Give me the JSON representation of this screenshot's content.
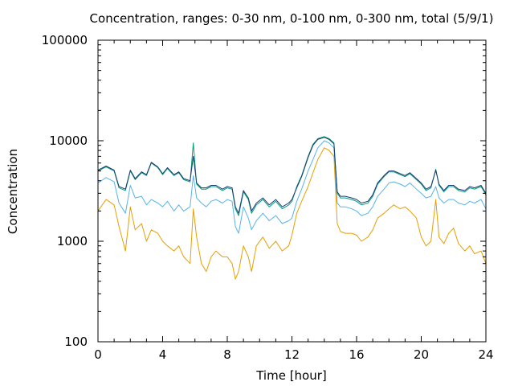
{
  "chart_data": {
    "type": "line",
    "title": "Concentration, ranges: 0-30 nm, 0-100 nm, 0-300 nm, total (5/9/1)",
    "xlabel": "Time [hour]",
    "ylabel": "Concentration",
    "xlim": [
      0,
      24
    ],
    "ylim": [
      100,
      100000
    ],
    "yscale": "log",
    "x_ticks": [
      0,
      4,
      8,
      12,
      16,
      20,
      24
    ],
    "x_tick_labels": [
      "0",
      "4",
      "8",
      "12",
      "16",
      "20",
      "24"
    ],
    "y_ticks": [
      100,
      1000,
      10000,
      100000
    ],
    "y_tick_labels": [
      "100",
      "1000",
      "10000",
      "100000"
    ],
    "grid": false,
    "legend": "none",
    "series": [
      {
        "color": "#e69f00",
        "x": [
          0,
          0.5,
          1,
          1.3,
          1.7,
          2,
          2.3,
          2.7,
          3,
          3.3,
          3.7,
          4,
          4.3,
          4.7,
          5,
          5.3,
          5.7,
          5.9,
          6.1,
          6.4,
          6.7,
          7,
          7.3,
          7.7,
          8,
          8.3,
          8.5,
          8.7,
          9,
          9.3,
          9.5,
          9.8,
          10.2,
          10.6,
          11,
          11.4,
          11.8,
          12,
          12.3,
          12.6,
          13,
          13.3,
          13.6,
          14,
          14.3,
          14.6,
          14.8,
          15,
          15.3,
          15.7,
          16,
          16.3,
          16.7,
          17,
          17.3,
          17.7,
          18,
          18.3,
          18.7,
          19,
          19.3,
          19.7,
          20,
          20.3,
          20.6,
          20.9,
          21.1,
          21.4,
          21.7,
          22,
          22.3,
          22.7,
          23,
          23.3,
          23.7,
          24
        ],
        "y": [
          2000,
          2600,
          2300,
          1400,
          800,
          2200,
          1300,
          1500,
          1000,
          1300,
          1200,
          1000,
          900,
          800,
          900,
          700,
          600,
          2100,
          1100,
          600,
          500,
          700,
          800,
          700,
          700,
          600,
          420,
          500,
          900,
          700,
          500,
          900,
          1100,
          850,
          1000,
          800,
          900,
          1150,
          1900,
          2500,
          3500,
          4800,
          6500,
          8500,
          8000,
          7000,
          1500,
          1250,
          1200,
          1200,
          1150,
          1000,
          1100,
          1300,
          1700,
          1900,
          2100,
          2300,
          2100,
          2200,
          2000,
          1700,
          1100,
          900,
          1000,
          2600,
          1100,
          950,
          1200,
          1350,
          950,
          800,
          900,
          750,
          800,
          600
        ]
      },
      {
        "color": "#56b4e9",
        "x": [
          0,
          0.5,
          1,
          1.3,
          1.7,
          2,
          2.3,
          2.7,
          3,
          3.3,
          3.7,
          4,
          4.3,
          4.7,
          5,
          5.3,
          5.7,
          5.9,
          6.1,
          6.4,
          6.7,
          7,
          7.3,
          7.7,
          8,
          8.3,
          8.5,
          8.7,
          9,
          9.3,
          9.5,
          9.8,
          10.2,
          10.6,
          11,
          11.4,
          11.8,
          12,
          12.3,
          12.6,
          13,
          13.3,
          13.6,
          14,
          14.3,
          14.6,
          14.8,
          15,
          15.3,
          15.7,
          16,
          16.3,
          16.7,
          17,
          17.3,
          17.7,
          18,
          18.3,
          18.7,
          19,
          19.3,
          19.7,
          20,
          20.3,
          20.6,
          20.9,
          21.1,
          21.4,
          21.7,
          22,
          22.3,
          22.7,
          23,
          23.3,
          23.7,
          24
        ],
        "y": [
          3800,
          4300,
          3900,
          2400,
          1900,
          3600,
          2700,
          2800,
          2300,
          2600,
          2400,
          2200,
          2500,
          2000,
          2300,
          2000,
          2200,
          4500,
          2700,
          2400,
          2200,
          2500,
          2600,
          2400,
          2600,
          2500,
          1400,
          1200,
          2200,
          1700,
          1300,
          1600,
          1900,
          1600,
          1800,
          1500,
          1600,
          1700,
          2500,
          3300,
          5000,
          6500,
          8500,
          10000,
          9500,
          8500,
          2400,
          2200,
          2200,
          2100,
          2000,
          1800,
          1900,
          2200,
          2800,
          3300,
          3800,
          3900,
          3700,
          3500,
          3800,
          3300,
          3000,
          2700,
          2800,
          3500,
          2700,
          2400,
          2600,
          2600,
          2400,
          2300,
          2500,
          2400,
          2600,
          2100
        ]
      },
      {
        "color": "#009e73",
        "x": [
          0,
          0.5,
          1,
          1.3,
          1.7,
          2,
          2.3,
          2.7,
          3,
          3.3,
          3.7,
          4,
          4.3,
          4.7,
          5,
          5.3,
          5.7,
          5.9,
          6.1,
          6.4,
          6.7,
          7,
          7.3,
          7.7,
          8,
          8.3,
          8.5,
          8.7,
          9,
          9.3,
          9.5,
          9.8,
          10.2,
          10.6,
          11,
          11.4,
          11.8,
          12,
          12.3,
          12.6,
          13,
          13.3,
          13.6,
          14,
          14.3,
          14.6,
          14.8,
          15,
          15.3,
          15.7,
          16,
          16.3,
          16.7,
          17,
          17.3,
          17.7,
          18,
          18.3,
          18.7,
          19,
          19.3,
          19.7,
          20,
          20.3,
          20.6,
          20.9,
          21.1,
          21.4,
          21.7,
          22,
          22.3,
          22.7,
          23,
          23.3,
          23.7,
          24
        ],
        "y": [
          5000,
          5500,
          5000,
          3400,
          3200,
          5000,
          4100,
          4800,
          4500,
          6000,
          5400,
          4600,
          5300,
          4500,
          4800,
          4100,
          3900,
          9500,
          3700,
          3300,
          3300,
          3500,
          3500,
          3200,
          3400,
          3300,
          2100,
          1800,
          3100,
          2600,
          1900,
          2300,
          2600,
          2200,
          2500,
          2100,
          2300,
          2500,
          3500,
          4500,
          7000,
          9200,
          10500,
          11000,
          10500,
          9500,
          3000,
          2700,
          2700,
          2600,
          2500,
          2300,
          2400,
          2800,
          3700,
          4400,
          4900,
          4900,
          4600,
          4400,
          4700,
          4100,
          3700,
          3200,
          3400,
          5200,
          3600,
          3100,
          3500,
          3500,
          3200,
          3100,
          3400,
          3300,
          3500,
          2900
        ]
      },
      {
        "color": "#1a3a7a",
        "x": [
          0,
          0.5,
          1,
          1.3,
          1.7,
          2,
          2.3,
          2.7,
          3,
          3.3,
          3.7,
          4,
          4.3,
          4.7,
          5,
          5.3,
          5.7,
          5.9,
          6.1,
          6.4,
          6.7,
          7,
          7.3,
          7.7,
          8,
          8.3,
          8.5,
          8.7,
          9,
          9.3,
          9.5,
          9.8,
          10.2,
          10.6,
          11,
          11.4,
          11.8,
          12,
          12.3,
          12.6,
          13,
          13.3,
          13.6,
          14,
          14.3,
          14.6,
          14.8,
          15,
          15.3,
          15.7,
          16,
          16.3,
          16.7,
          17,
          17.3,
          17.7,
          18,
          18.3,
          18.7,
          19,
          19.3,
          19.7,
          20,
          20.3,
          20.6,
          20.9,
          21.1,
          21.4,
          21.7,
          22,
          22.3,
          22.7,
          23,
          23.3,
          23.7,
          24
        ],
        "y": [
          5100,
          5600,
          5100,
          3500,
          3300,
          5100,
          4200,
          4900,
          4600,
          6100,
          5500,
          4700,
          5400,
          4600,
          4900,
          4200,
          4000,
          7000,
          3800,
          3400,
          3400,
          3600,
          3600,
          3300,
          3500,
          3400,
          2200,
          1900,
          3200,
          2700,
          2000,
          2400,
          2700,
          2300,
          2600,
          2200,
          2400,
          2600,
          3400,
          4400,
          6800,
          9000,
          10300,
          10800,
          10300,
          9300,
          3100,
          2800,
          2800,
          2700,
          2600,
          2400,
          2500,
          2900,
          3800,
          4500,
          5000,
          5000,
          4700,
          4500,
          4800,
          4200,
          3800,
          3300,
          3500,
          5100,
          3700,
          3200,
          3600,
          3600,
          3300,
          3200,
          3500,
          3400,
          3600,
          3000
        ]
      }
    ]
  }
}
